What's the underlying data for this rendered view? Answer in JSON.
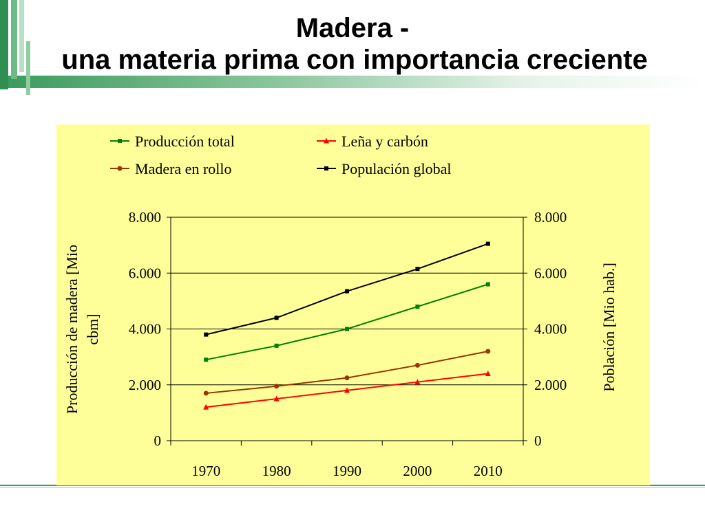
{
  "slide": {
    "title_line1": "Madera -",
    "title_line2": "una materia prima con importancia creciente"
  },
  "colors": {
    "accent_green": "#2e8b57",
    "panel_background": "#ffff99"
  },
  "chart_data": {
    "type": "line",
    "categories": [
      "1970",
      "1980",
      "1990",
      "2000",
      "2010"
    ],
    "x": [
      1970,
      1980,
      1990,
      2000,
      2010
    ],
    "ylim": [
      0,
      8000
    ],
    "y2lim": [
      0,
      8000
    ],
    "yticks": [
      "0",
      "2.000",
      "4.000",
      "6.000",
      "8.000"
    ],
    "y2ticks": [
      "0",
      "2.000",
      "4.000",
      "6.000",
      "8.000"
    ],
    "ylabel": "Producción de madera [Mio cbm]",
    "y2label": "Población [Mio hab.]",
    "grid": true,
    "legend_position": "top",
    "series": [
      {
        "name": "Producción total",
        "color": "#008000",
        "marker": "square",
        "axis": "left",
        "values": [
          2900,
          3400,
          4000,
          4800,
          5600
        ]
      },
      {
        "name": "Leña y carbón",
        "color": "#ff0000",
        "marker": "triangle",
        "axis": "left",
        "values": [
          1200,
          1500,
          1800,
          2100,
          2400
        ]
      },
      {
        "name": "Madera en rollo",
        "color": "#993300",
        "marker": "circle",
        "axis": "left",
        "values": [
          1700,
          1950,
          2250,
          2700,
          3200
        ]
      },
      {
        "name": "Populación global",
        "color": "#000000",
        "marker": "square",
        "axis": "right",
        "values": [
          3800,
          4400,
          5350,
          6150,
          7050
        ]
      }
    ]
  }
}
